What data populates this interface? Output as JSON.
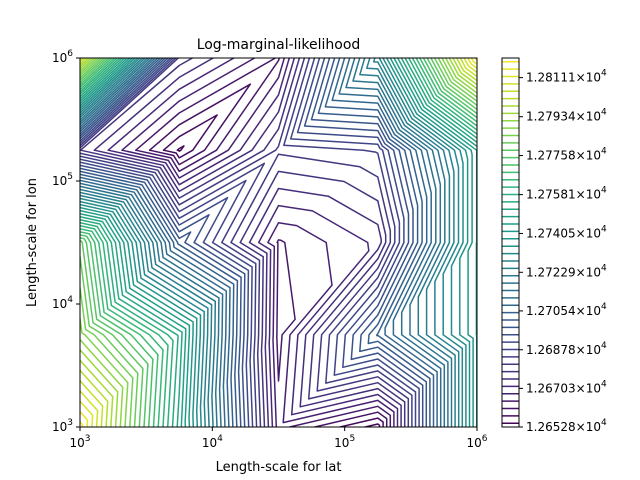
{
  "chart_data": {
    "type": "contour",
    "title": "Log-marginal-likelihood",
    "xlabel": "Length-scale for lat",
    "ylabel": "Length-scale for lon",
    "x_scale": "log",
    "y_scale": "log",
    "xlim": [
      1000,
      1000000
    ],
    "ylim": [
      1000,
      1000000
    ],
    "x_ticks": [
      {
        "value": 1000,
        "base": "10",
        "exp": "3"
      },
      {
        "value": 10000,
        "base": "10",
        "exp": "4"
      },
      {
        "value": 100000,
        "base": "10",
        "exp": "5"
      },
      {
        "value": 1000000,
        "base": "10",
        "exp": "6"
      }
    ],
    "y_ticks": [
      {
        "value": 1000,
        "base": "10",
        "exp": "3"
      },
      {
        "value": 10000,
        "base": "10",
        "exp": "4"
      },
      {
        "value": 100000,
        "base": "10",
        "exp": "5"
      },
      {
        "value": 1000000,
        "base": "10",
        "exp": "6"
      }
    ],
    "colormap": "viridis",
    "level_range": [
      12652.8,
      12820.0
    ],
    "colorbar_ticks": [
      {
        "value": 12652.8,
        "mantissa": "1.26528",
        "base": "10",
        "exp": "4"
      },
      {
        "value": 12670.3,
        "mantissa": "1.26703",
        "base": "10",
        "exp": "4"
      },
      {
        "value": 12687.8,
        "mantissa": "1.26878",
        "base": "10",
        "exp": "4"
      },
      {
        "value": 12705.4,
        "mantissa": "1.27054",
        "base": "10",
        "exp": "4"
      },
      {
        "value": 12722.9,
        "mantissa": "1.27229",
        "base": "10",
        "exp": "4"
      },
      {
        "value": 12740.5,
        "mantissa": "1.27405",
        "base": "10",
        "exp": "4"
      },
      {
        "value": 12758.1,
        "mantissa": "1.27581",
        "base": "10",
        "exp": "4"
      },
      {
        "value": 12775.8,
        "mantissa": "1.27758",
        "base": "10",
        "exp": "4"
      },
      {
        "value": 12793.4,
        "mantissa": "1.27934",
        "base": "10",
        "exp": "4"
      },
      {
        "value": 12811.1,
        "mantissa": "1.28111",
        "base": "10",
        "exp": "4"
      }
    ],
    "grid_x": [
      1000,
      5623,
      31623,
      177828,
      1000000
    ],
    "grid_y": [
      1000,
      5623,
      31623,
      177828,
      1000000
    ],
    "z": [
      [
        12820.0,
        12750.0,
        12666.0,
        12652.8,
        12745.0
      ],
      [
        12790.0,
        12754.0,
        12663.0,
        12705.0,
        12745.0
      ],
      [
        12780.0,
        12700.0,
        12664.0,
        12672.0,
        12745.0
      ],
      [
        12678.0,
        12654.0,
        12682.0,
        12685.0,
        12745.0
      ],
      [
        12810.0,
        12680.0,
        12664.0,
        12730.0,
        12820.0
      ]
    ],
    "grid": false,
    "legend": "colorbar right"
  }
}
